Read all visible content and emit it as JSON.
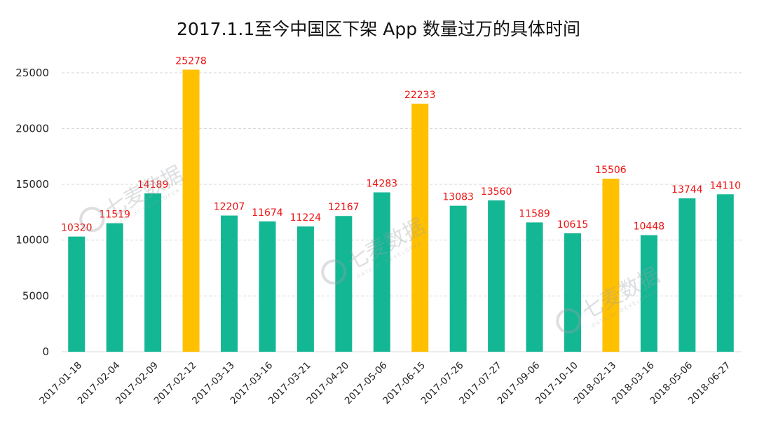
{
  "chart_data": {
    "type": "bar",
    "title": "2017.1.1至今中国区下架 App 数量过万的具体时间",
    "xlabel": "",
    "ylabel": "",
    "ylim": [
      0,
      27000
    ],
    "yticks": [
      0,
      5000,
      10000,
      15000,
      20000,
      25000
    ],
    "grid": true,
    "categories": [
      "2017-01-18",
      "2017-02-04",
      "2017-02-09",
      "2017-02-12",
      "2017-03-13",
      "2017-03-16",
      "2017-03-21",
      "2017-04-20",
      "2017-05-06",
      "2017-06-15",
      "2017-07-26",
      "2017-07-27",
      "2017-09-06",
      "2017-10-10",
      "2018-02-13",
      "2018-03-16",
      "2018-05-06",
      "2018-06-27"
    ],
    "values": [
      10320,
      11519,
      14189,
      25278,
      12207,
      11674,
      11224,
      12167,
      14283,
      22233,
      13083,
      13560,
      11589,
      10615,
      15506,
      10448,
      13744,
      14110
    ],
    "highlight_indices": [
      3,
      9,
      14
    ],
    "colors": {
      "normal": "#13b794",
      "highlight": "#ffc000",
      "label": "#ee1111"
    }
  },
  "watermark": {
    "text": "七麦数据",
    "subtext": "DATA·AI·DEVELOPER"
  }
}
